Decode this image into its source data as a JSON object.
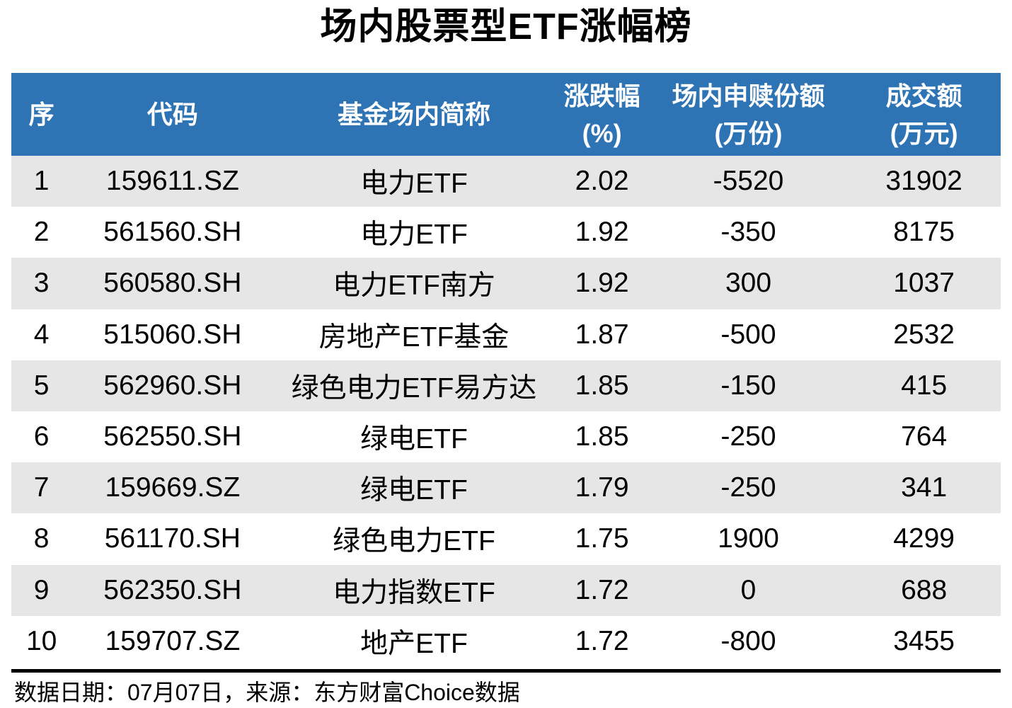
{
  "chart_data": {
    "type": "table",
    "title": "场内股票型ETF涨幅榜",
    "header": [
      {
        "label": "序",
        "unit": ""
      },
      {
        "label": "代码",
        "unit": ""
      },
      {
        "label": "基金场内简称",
        "unit": ""
      },
      {
        "label": "涨跌幅",
        "unit": "(%)"
      },
      {
        "label": "场内申赎份额",
        "unit": "(万份)"
      },
      {
        "label": "成交额",
        "unit": "(万元)"
      }
    ],
    "columns": [
      "序",
      "代码",
      "基金场内简称",
      "涨跌幅(%)",
      "场内申赎份额(万份)",
      "成交额(万元)"
    ],
    "rows": [
      [
        "1",
        "159611.SZ",
        "电力ETF",
        "2.02",
        "-5520",
        "31902"
      ],
      [
        "2",
        "561560.SH",
        "电力ETF",
        "1.92",
        "-350",
        "8175"
      ],
      [
        "3",
        "560580.SH",
        "电力ETF南方",
        "1.92",
        "300",
        "1037"
      ],
      [
        "4",
        "515060.SH",
        "房地产ETF基金",
        "1.87",
        "-500",
        "2532"
      ],
      [
        "5",
        "562960.SH",
        "绿色电力ETF易方达",
        "1.85",
        "-150",
        "415"
      ],
      [
        "6",
        "562550.SH",
        "绿电ETF",
        "1.85",
        "-250",
        "764"
      ],
      [
        "7",
        "159669.SZ",
        "绿电ETF",
        "1.79",
        "-250",
        "341"
      ],
      [
        "8",
        "561170.SH",
        "绿色电力ETF",
        "1.75",
        "1900",
        "4299"
      ],
      [
        "9",
        "562350.SH",
        "电力指数ETF",
        "1.72",
        "0",
        "688"
      ],
      [
        "10",
        "159707.SZ",
        "地产ETF",
        "1.72",
        "-800",
        "3455"
      ]
    ],
    "source_note": "数据日期：07月07日，来源：东方财富Choice数据"
  },
  "colors": {
    "header_bg": "#2E74B5",
    "header_text": "#FFFFFF",
    "stripe_bg": "#E7E6E6",
    "body_text": "#000000"
  }
}
